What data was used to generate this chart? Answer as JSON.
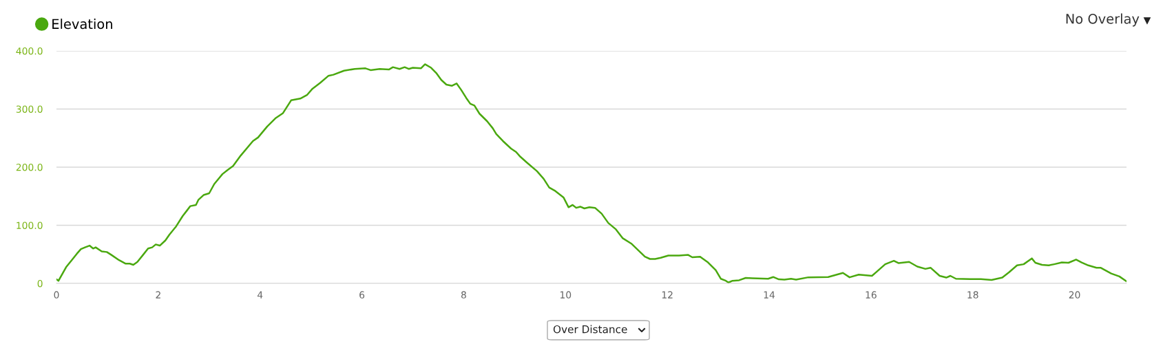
{
  "chart_data": {
    "type": "line",
    "legend": "top left",
    "grid": "y",
    "marker": "none",
    "line_style": "solid",
    "xlim": [
      0,
      21.02
    ],
    "xticks": [
      0,
      2,
      4,
      6,
      8,
      10,
      12,
      14,
      16,
      18,
      20
    ],
    "ylim": [
      0,
      400
    ],
    "yticks": [
      0,
      {
        "value": 100,
        "label": "100.0"
      },
      {
        "value": 200,
        "label": "200.0"
      },
      {
        "value": 300,
        "label": "300.0"
      },
      {
        "value": 400,
        "label": "400.0"
      }
    ],
    "annotations": [
      "No Overlay",
      "Over Distance"
    ],
    "series": [
      {
        "name": "Elevation",
        "color": "#4aa80f",
        "x": [
          0,
          0.04,
          0.12,
          0.19,
          0.3,
          0.4,
          0.48,
          0.56,
          0.65,
          0.72,
          0.77,
          0.89,
          0.99,
          1.08,
          1.23,
          1.36,
          1.44,
          1.51,
          1.59,
          1.7,
          1.8,
          1.88,
          1.95,
          2.03,
          2.14,
          2.22,
          2.35,
          2.48,
          2.56,
          2.63,
          2.74,
          2.79,
          2.89,
          3.0,
          3.1,
          3.26,
          3.36,
          3.47,
          3.62,
          3.86,
          3.96,
          4.14,
          4.3,
          4.45,
          4.61,
          4.79,
          4.92,
          5.03,
          5.18,
          5.34,
          5.44,
          5.65,
          5.86,
          6.07,
          6.17,
          6.35,
          6.53,
          6.61,
          6.74,
          6.84,
          6.92,
          7.0,
          7.16,
          7.24,
          7.36,
          7.46,
          7.56,
          7.66,
          7.77,
          7.86,
          7.95,
          8.05,
          8.13,
          8.21,
          8.31,
          8.46,
          8.57,
          8.64,
          8.77,
          8.93,
          9.03,
          9.1,
          9.24,
          9.44,
          9.57,
          9.68,
          9.8,
          9.96,
          10.06,
          10.14,
          10.21,
          10.29,
          10.37,
          10.47,
          10.58,
          10.71,
          10.84,
          10.99,
          11.12,
          11.3,
          11.43,
          11.56,
          11.66,
          11.76,
          11.87,
          12.02,
          12.23,
          12.41,
          12.49,
          12.64,
          12.8,
          12.95,
          13.05,
          13.15,
          13.2,
          13.28,
          13.41,
          13.54,
          13.67,
          13.98,
          14.08,
          14.19,
          14.3,
          14.43,
          14.53,
          14.77,
          15.16,
          15.45,
          15.58,
          15.76,
          16.02,
          16.28,
          16.45,
          16.54,
          16.75,
          16.91,
          17.07,
          17.17,
          17.35,
          17.48,
          17.56,
          17.67,
          17.95,
          18.16,
          18.37,
          18.58,
          18.71,
          18.87,
          19.0,
          19.16,
          19.23,
          19.36,
          19.49,
          19.6,
          19.75,
          19.88,
          20.03,
          20.14,
          20.27,
          20.43,
          20.51,
          20.72,
          20.88,
          21.02
        ],
        "values": [
          7,
          4.5,
          17,
          28,
          40,
          51,
          59,
          62,
          65,
          60,
          62,
          55,
          54,
          49,
          40,
          34,
          34,
          32,
          37,
          49,
          60,
          62,
          67,
          65,
          74,
          84,
          98,
          116,
          125,
          133,
          135,
          144,
          152,
          155,
          171,
          188,
          195,
          202,
          220,
          245,
          251,
          270,
          284,
          293,
          315,
          318,
          324,
          335,
          345,
          357,
          359,
          366,
          369,
          370,
          367,
          369,
          368,
          372,
          369,
          372,
          369,
          371,
          370,
          377,
          371,
          362,
          350,
          342,
          340,
          344,
          333,
          319,
          309,
          306,
          292,
          279,
          267,
          257,
          245,
          232,
          226,
          219,
          208,
          193,
          180,
          165,
          159,
          148,
          131,
          135,
          130,
          132,
          129,
          131,
          130,
          120,
          104,
          93,
          78,
          68,
          57,
          46,
          42,
          42,
          44,
          48,
          48,
          49,
          45,
          46,
          36,
          23,
          8,
          4.5,
          1.5,
          4.5,
          5.4,
          9.5,
          9,
          8,
          11,
          7,
          6.4,
          8,
          6.4,
          10.5,
          11,
          18,
          10.5,
          15,
          13,
          33,
          39,
          35,
          37,
          29,
          25,
          27,
          13,
          10,
          13,
          8,
          7.3,
          7.3,
          6,
          10,
          19,
          31,
          33,
          43,
          35.5,
          32,
          31,
          33,
          36,
          35.5,
          41,
          36,
          31,
          27,
          27,
          17,
          12,
          3.6
        ]
      }
    ]
  }
}
